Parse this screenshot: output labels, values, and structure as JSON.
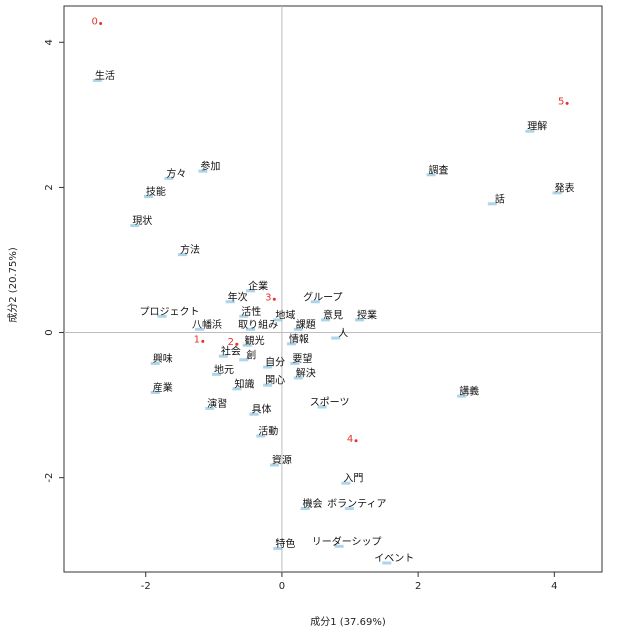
{
  "chart_data": {
    "type": "scatter",
    "title": "",
    "xlabel": "成分1 (37.69%)",
    "ylabel": "成分2 (20.75%)",
    "xlim": [
      -3.2,
      4.7
    ],
    "ylim": [
      -3.3,
      4.5
    ],
    "xticks": [
      -2,
      0,
      2,
      4
    ],
    "yticks": [
      -2,
      0,
      2,
      4
    ],
    "grid": false,
    "reference_lines": [
      0,
      0
    ],
    "colors": {
      "words": "#111111",
      "documents": "#e8322b",
      "points": "#7fbfdf",
      "reference": "#bdbdbd",
      "frame": "#333333"
    },
    "series": [
      {
        "points": [
          {
            "label": "生活",
            "x": -2.6,
            "y": 3.55
          },
          {
            "label": "方々",
            "x": -1.55,
            "y": 2.2
          },
          {
            "label": "参加",
            "x": -1.05,
            "y": 2.3
          },
          {
            "label": "技能",
            "x": -1.85,
            "y": 1.95
          },
          {
            "label": "現状",
            "x": -2.05,
            "y": 1.55
          },
          {
            "label": "方法",
            "x": -1.35,
            "y": 1.15
          },
          {
            "label": "企業",
            "x": -0.35,
            "y": 0.65
          },
          {
            "label": "年次",
            "x": -0.65,
            "y": 0.5
          },
          {
            "label": "グループ",
            "x": 0.6,
            "y": 0.5
          },
          {
            "label": "プロジェクト",
            "x": -1.65,
            "y": 0.3
          },
          {
            "label": "活性",
            "x": -0.45,
            "y": 0.3
          },
          {
            "label": "地域",
            "x": 0.05,
            "y": 0.25
          },
          {
            "label": "意見",
            "x": 0.75,
            "y": 0.25
          },
          {
            "label": "授業",
            "x": 1.25,
            "y": 0.25
          },
          {
            "label": "八幡浜",
            "x": -1.1,
            "y": 0.12
          },
          {
            "label": "取り組み",
            "x": -0.35,
            "y": 0.12
          },
          {
            "label": "課題",
            "x": 0.35,
            "y": 0.12
          },
          {
            "label": "人",
            "x": 0.9,
            "y": 0.0
          },
          {
            "label": "観光",
            "x": -0.4,
            "y": -0.1
          },
          {
            "label": "情報",
            "x": 0.25,
            "y": -0.08
          },
          {
            "label": "興味",
            "x": -1.75,
            "y": -0.35
          },
          {
            "label": "社会",
            "x": -0.75,
            "y": -0.25
          },
          {
            "label": "創",
            "x": -0.45,
            "y": -0.3
          },
          {
            "label": "自分",
            "x": -0.1,
            "y": -0.4
          },
          {
            "label": "要望",
            "x": 0.3,
            "y": -0.35
          },
          {
            "label": "地元",
            "x": -0.85,
            "y": -0.5
          },
          {
            "label": "解決",
            "x": 0.35,
            "y": -0.55
          },
          {
            "label": "産業",
            "x": -1.75,
            "y": -0.75
          },
          {
            "label": "知識",
            "x": -0.55,
            "y": -0.7
          },
          {
            "label": "関心",
            "x": -0.1,
            "y": -0.65
          },
          {
            "label": "スポーツ",
            "x": 0.7,
            "y": -0.95
          },
          {
            "label": "講義",
            "x": 2.75,
            "y": -0.8
          },
          {
            "label": "演習",
            "x": -0.95,
            "y": -0.97
          },
          {
            "label": "具体",
            "x": -0.3,
            "y": -1.05
          },
          {
            "label": "活動",
            "x": -0.2,
            "y": -1.35
          },
          {
            "label": "資源",
            "x": 0.0,
            "y": -1.75
          },
          {
            "label": "入門",
            "x": 1.05,
            "y": -2.0
          },
          {
            "label": "機会",
            "x": 0.45,
            "y": -2.35
          },
          {
            "label": "ボランティア",
            "x": 1.1,
            "y": -2.35
          },
          {
            "label": "特色",
            "x": 0.05,
            "y": -2.9
          },
          {
            "label": "リーダーシップ",
            "x": 0.95,
            "y": -2.87
          },
          {
            "label": "イベント",
            "x": 1.65,
            "y": -3.1
          },
          {
            "label": "調査",
            "x": 2.3,
            "y": 2.25
          },
          {
            "label": "理解",
            "x": 3.75,
            "y": 2.85
          },
          {
            "label": "話",
            "x": 3.2,
            "y": 1.85
          },
          {
            "label": "発表",
            "x": 4.15,
            "y": 2.0
          }
        ]
      },
      {
        "points": [
          {
            "label": "0",
            "x": -2.75,
            "y": 4.3
          },
          {
            "label": "5",
            "x": 4.1,
            "y": 3.2
          },
          {
            "label": "3",
            "x": -0.2,
            "y": 0.5
          },
          {
            "label": "1",
            "x": -1.25,
            "y": -0.08
          },
          {
            "label": "2",
            "x": -0.75,
            "y": -0.12
          },
          {
            "label": "4",
            "x": 1.0,
            "y": -1.45
          }
        ]
      }
    ]
  }
}
